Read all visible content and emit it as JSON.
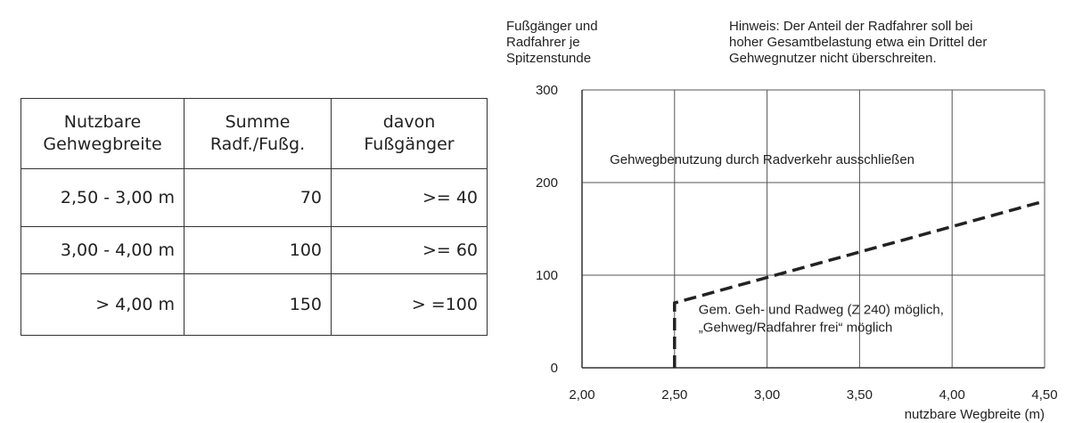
{
  "table": {
    "header": [
      [
        "Nutzbare",
        "Gehwegbreite"
      ],
      [
        "Summe",
        "Radf./Fußg."
      ],
      [
        "davon",
        "Fußgänger"
      ]
    ],
    "rows": [
      [
        "2,50 - 3,00  m",
        "70",
        ">=  40"
      ],
      [
        "3,00 - 4,00  m",
        "100",
        ">=  60"
      ],
      [
        "> 4,00 m",
        "150",
        "> =100"
      ]
    ]
  },
  "chart_data": {
    "type": "line",
    "ylabel": [
      "Fußgänger und",
      "Radfahrer je",
      "Spitzenstunde"
    ],
    "note": [
      "Hinweis: Der Anteil der Radfahrer soll bei",
      "hoher Gesamtbelastung etwa ein Drittel der",
      "Gehwegnutzer nicht überschreiten."
    ],
    "xlabel": "nutzbare Wegbreite (m)",
    "annotations": [
      {
        "text": [
          "Gehwegbenutzung durch Radverkehr ausschließen"
        ],
        "x": 2.15,
        "y": 220
      },
      {
        "text": [
          "Gem. Geh- und Radweg (Z 240) möglich,",
          "„Gehweg/Radfahrer frei“ möglich"
        ],
        "x": 2.63,
        "y": 58
      }
    ],
    "x": [
      2.5,
      2.5,
      4.5
    ],
    "series": [
      {
        "color": "#222222",
        "values": [
          0,
          70,
          180
        ]
      }
    ],
    "line_style": "dashed",
    "xlim": [
      2.0,
      4.5
    ],
    "ylim": [
      0,
      300
    ],
    "xticks": [
      {
        "value": 2.0,
        "label": "2,00"
      },
      {
        "value": 2.5,
        "label": "2,50"
      },
      {
        "value": 3.0,
        "label": "3,00"
      },
      {
        "value": 3.5,
        "label": "3,50"
      },
      {
        "value": 4.0,
        "label": "4,00"
      },
      {
        "value": 4.5,
        "label": "4,50"
      }
    ],
    "yticks": [
      0,
      100,
      200,
      300
    ],
    "grid": true
  }
}
